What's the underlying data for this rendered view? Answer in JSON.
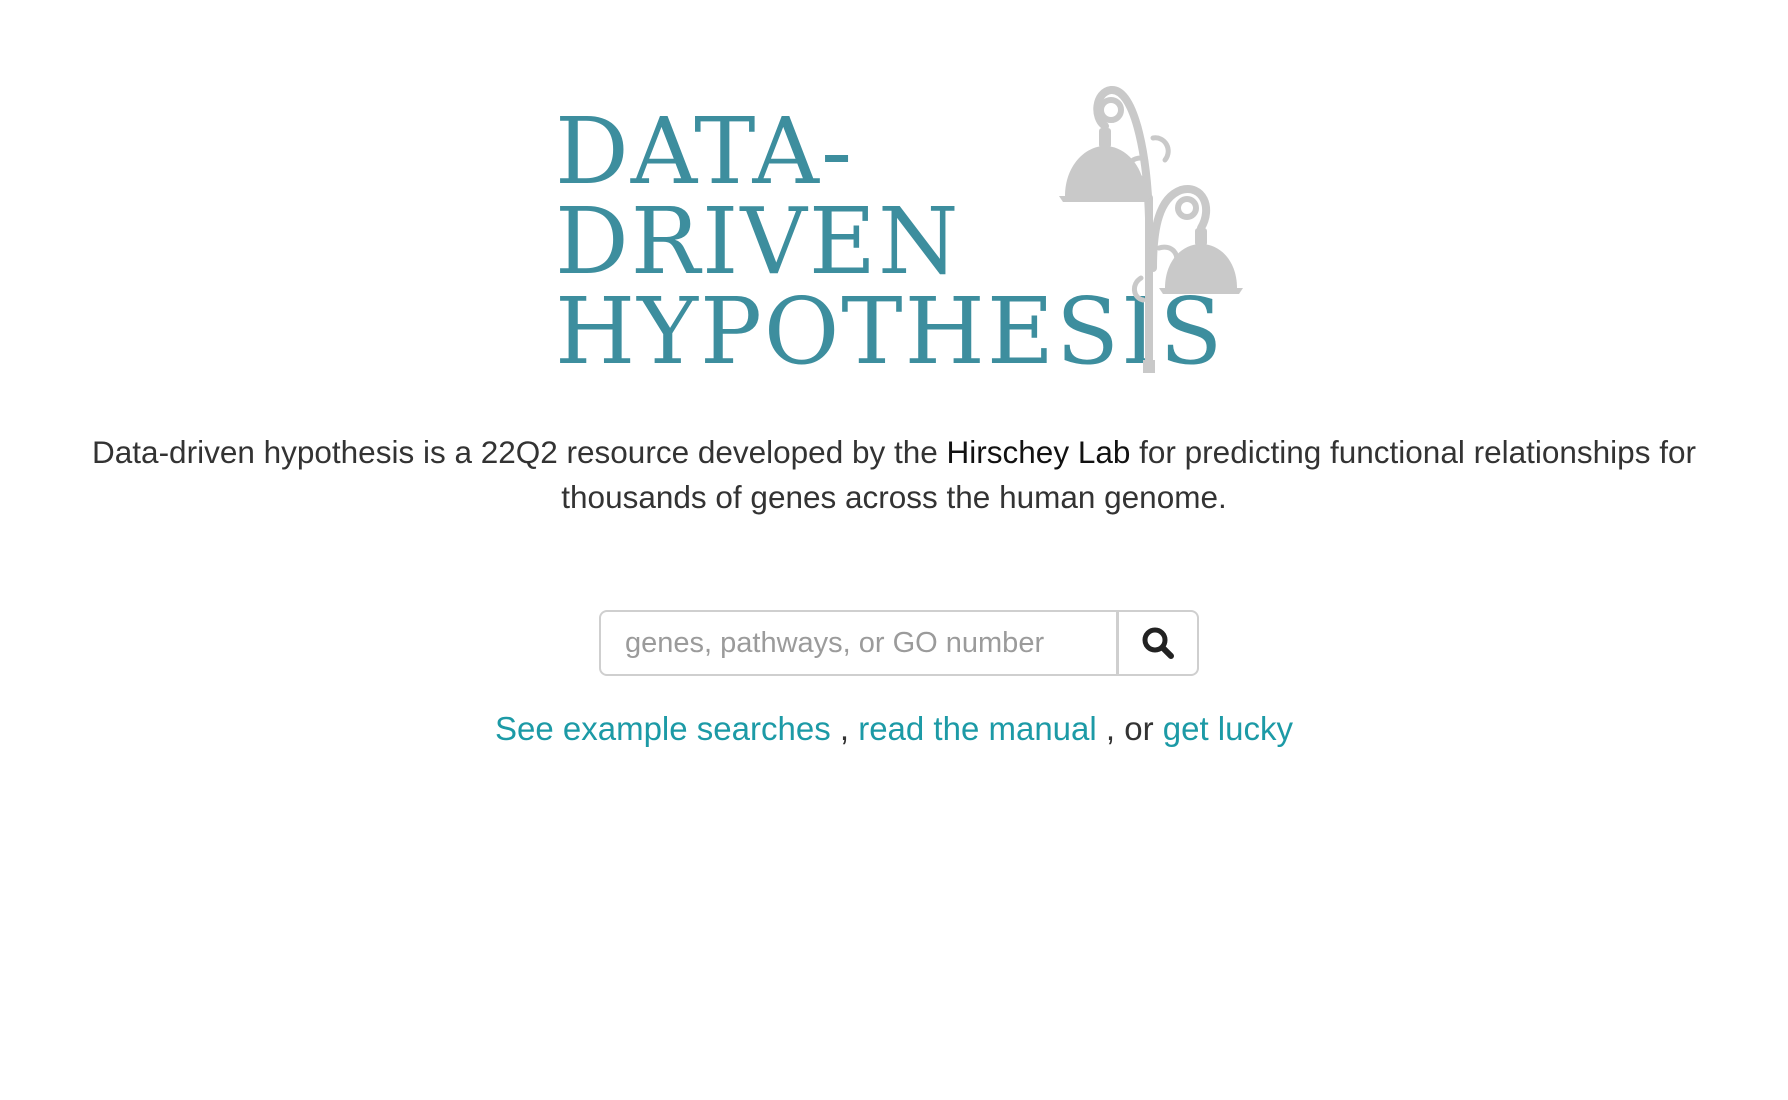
{
  "logo": {
    "line1": "DATA-",
    "line2": "DRIVEN",
    "line3": "HYPOTHESIS",
    "icon": "street-lamp-icon",
    "text_color": "#3d8e9e",
    "icon_color": "#c9c9c9"
  },
  "intro": {
    "before_link": "Data-driven hypothesis is a 22Q2 resource developed by the",
    "lab_link": "Hirschey Lab",
    "after_link": "for predicting functional relationships for thousands of genes across the human genome."
  },
  "search": {
    "placeholder": "genes, pathways, or GO number",
    "value": "",
    "button_icon": "search-icon"
  },
  "links": {
    "examples": "See example searches",
    "sep1": " , ",
    "manual": "read the manual",
    "sep2": " , or ",
    "lucky": "get lucky",
    "link_color": "#1c9aa6"
  }
}
